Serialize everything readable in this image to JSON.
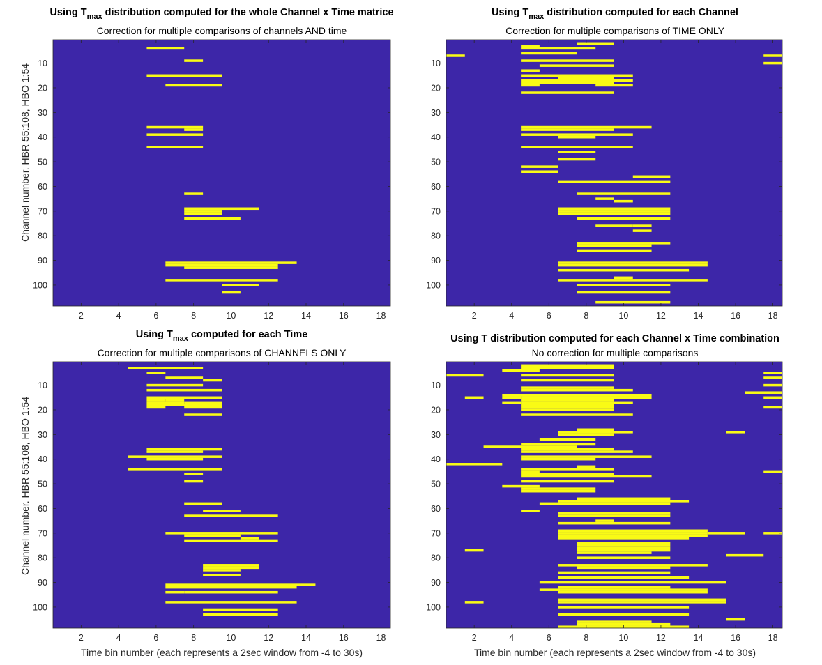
{
  "colors": {
    "background": "#3d26a8",
    "significant": "#f9fb15",
    "axis": "#262626"
  },
  "chart_data": [
    {
      "type": "heatmap",
      "title": {
        "prefix": "Using T",
        "subscript": "max",
        "suffix": " distribution computed for the whole Channel x Time matrice"
      },
      "subtitle": "Correction for multiple comparisons of channels AND time",
      "xlabel": "",
      "ylabel": "Channel number. HBR 55:108, HBO 1:54",
      "xlim": [
        0.5,
        18.5
      ],
      "ylim": [
        0.5,
        108.5
      ],
      "y_reversed": true,
      "xticks": [
        2,
        4,
        6,
        8,
        10,
        12,
        14,
        16,
        18
      ],
      "yticks": [
        10,
        20,
        30,
        40,
        50,
        60,
        70,
        80,
        90,
        100
      ],
      "segments": [
        [
          4,
          6,
          7
        ],
        [
          9,
          8,
          8
        ],
        [
          15,
          6,
          9
        ],
        [
          19,
          7,
          9
        ],
        [
          36,
          6,
          8
        ],
        [
          37,
          8,
          8
        ],
        [
          39,
          6,
          8
        ],
        [
          44,
          6,
          8
        ],
        [
          63,
          8,
          8
        ],
        [
          69,
          8,
          11
        ],
        [
          70,
          8,
          9
        ],
        [
          71,
          8,
          9
        ],
        [
          73,
          8,
          10
        ],
        [
          91,
          7,
          13
        ],
        [
          92,
          7,
          12
        ],
        [
          93,
          8,
          12
        ],
        [
          98,
          7,
          12
        ],
        [
          100,
          10,
          11
        ],
        [
          103,
          10,
          10
        ]
      ]
    },
    {
      "type": "heatmap",
      "title": {
        "prefix": "Using T",
        "subscript": "max",
        "suffix": " distribution computed for each Channel"
      },
      "subtitle": "Correction for multiple comparisons of TIME ONLY",
      "xlabel": "",
      "ylabel": "",
      "xlim": [
        0.5,
        18.5
      ],
      "ylim": [
        0.5,
        108.5
      ],
      "y_reversed": true,
      "xticks": [
        2,
        4,
        6,
        8,
        10,
        12,
        14,
        16,
        18
      ],
      "yticks": [
        10,
        20,
        30,
        40,
        50,
        60,
        70,
        80,
        90,
        100
      ],
      "segments": [
        [
          2,
          8,
          9
        ],
        [
          3,
          5,
          5
        ],
        [
          4,
          5,
          8
        ],
        [
          6,
          5,
          7
        ],
        [
          7,
          1,
          1
        ],
        [
          7,
          18,
          18
        ],
        [
          9,
          5,
          9
        ],
        [
          10,
          18,
          18
        ],
        [
          11,
          6,
          9
        ],
        [
          13,
          5,
          5
        ],
        [
          15,
          5,
          10
        ],
        [
          16,
          7,
          9
        ],
        [
          17,
          5,
          10
        ],
        [
          18,
          5,
          9
        ],
        [
          19,
          5,
          5
        ],
        [
          19,
          9,
          10
        ],
        [
          22,
          5,
          9
        ],
        [
          36,
          5,
          11
        ],
        [
          37,
          5,
          9
        ],
        [
          39,
          5,
          10
        ],
        [
          40,
          7,
          8
        ],
        [
          44,
          5,
          10
        ],
        [
          46,
          7,
          8
        ],
        [
          49,
          7,
          8
        ],
        [
          52,
          5,
          6
        ],
        [
          54,
          5,
          6
        ],
        [
          56,
          11,
          12
        ],
        [
          58,
          7,
          12
        ],
        [
          63,
          8,
          12
        ],
        [
          65,
          9,
          9
        ],
        [
          66,
          10,
          10
        ],
        [
          69,
          7,
          12
        ],
        [
          70,
          7,
          12
        ],
        [
          71,
          7,
          12
        ],
        [
          73,
          8,
          12
        ],
        [
          76,
          9,
          10
        ],
        [
          76,
          11,
          11
        ],
        [
          78,
          11,
          11
        ],
        [
          83,
          8,
          12
        ],
        [
          84,
          8,
          11
        ],
        [
          86,
          8,
          11
        ],
        [
          91,
          7,
          14
        ],
        [
          92,
          7,
          14
        ],
        [
          94,
          7,
          13
        ],
        [
          97,
          10,
          10
        ],
        [
          98,
          7,
          14
        ],
        [
          100,
          8,
          12
        ],
        [
          103,
          8,
          12
        ],
        [
          107,
          9,
          12
        ]
      ]
    },
    {
      "type": "heatmap",
      "title": {
        "prefix": "Using T",
        "subscript": "max",
        "suffix": " computed for each Time"
      },
      "subtitle": "Correction for multiple comparisons of CHANNELS ONLY",
      "xlabel": "Time bin number (each represents a 2sec window from -4 to 30s)",
      "ylabel": "Channel number. HBR 55:108, HBO 1:54",
      "xlim": [
        0.5,
        18.5
      ],
      "ylim": [
        0.5,
        108.5
      ],
      "y_reversed": true,
      "xticks": [
        2,
        4,
        6,
        8,
        10,
        12,
        14,
        16,
        18
      ],
      "yticks": [
        10,
        20,
        30,
        40,
        50,
        60,
        70,
        80,
        90,
        100
      ],
      "segments": [
        [
          3,
          5,
          8
        ],
        [
          5,
          6,
          6
        ],
        [
          7,
          7,
          8
        ],
        [
          8,
          9,
          9
        ],
        [
          10,
          6,
          8
        ],
        [
          12,
          6,
          9
        ],
        [
          15,
          6,
          9
        ],
        [
          16,
          6,
          6
        ],
        [
          16,
          7,
          7
        ],
        [
          17,
          6,
          7
        ],
        [
          17,
          8,
          9
        ],
        [
          18,
          6,
          9
        ],
        [
          19,
          6,
          6
        ],
        [
          19,
          8,
          9
        ],
        [
          22,
          8,
          9
        ],
        [
          36,
          6,
          9
        ],
        [
          37,
          6,
          8
        ],
        [
          39,
          5,
          9
        ],
        [
          40,
          6,
          8
        ],
        [
          44,
          5,
          9
        ],
        [
          46,
          8,
          8
        ],
        [
          49,
          8,
          8
        ],
        [
          58,
          8,
          9
        ],
        [
          61,
          9,
          10
        ],
        [
          63,
          8,
          12
        ],
        [
          70,
          7,
          12
        ],
        [
          71,
          8,
          10
        ],
        [
          72,
          11,
          11
        ],
        [
          73,
          8,
          12
        ],
        [
          83,
          9,
          11
        ],
        [
          84,
          9,
          11
        ],
        [
          85,
          9,
          10
        ],
        [
          87,
          9,
          10
        ],
        [
          91,
          7,
          14
        ],
        [
          92,
          7,
          13
        ],
        [
          94,
          7,
          7
        ],
        [
          94,
          8,
          12
        ],
        [
          98,
          7,
          13
        ],
        [
          101,
          9,
          12
        ],
        [
          103,
          9,
          12
        ]
      ]
    },
    {
      "type": "heatmap",
      "title": {
        "prefix": "Using T distribution computed for each Channel x Time combination",
        "subscript": "",
        "suffix": ""
      },
      "subtitle": "No correction for multiple comparisons",
      "xlabel": "Time bin number (each represents a 2sec window from -4 to 30s)",
      "ylabel": "",
      "xlim": [
        0.5,
        18.5
      ],
      "ylim": [
        0.5,
        108.5
      ],
      "y_reversed": true,
      "xticks": [
        2,
        4,
        6,
        8,
        10,
        12,
        14,
        16,
        18
      ],
      "yticks": [
        10,
        20,
        30,
        40,
        50,
        60,
        70,
        80,
        90,
        100
      ],
      "segments": [
        [
          2,
          5,
          9
        ],
        [
          3,
          5,
          9
        ],
        [
          4,
          4,
          5
        ],
        [
          5,
          18,
          18
        ],
        [
          6,
          1,
          2
        ],
        [
          6,
          5,
          9
        ],
        [
          7,
          18,
          18
        ],
        [
          8,
          5,
          9
        ],
        [
          10,
          18,
          18
        ],
        [
          11,
          5,
          9
        ],
        [
          12,
          5,
          10
        ],
        [
          13,
          17,
          18
        ],
        [
          14,
          4,
          11
        ],
        [
          15,
          2,
          2
        ],
        [
          15,
          4,
          4
        ],
        [
          15,
          5,
          11
        ],
        [
          15,
          18,
          18
        ],
        [
          16,
          5,
          9
        ],
        [
          17,
          4,
          4
        ],
        [
          17,
          5,
          10
        ],
        [
          18,
          5,
          9
        ],
        [
          19,
          5,
          9
        ],
        [
          19,
          18,
          18
        ],
        [
          20,
          5,
          9
        ],
        [
          22,
          5,
          10
        ],
        [
          28,
          8,
          9
        ],
        [
          29,
          7,
          10
        ],
        [
          29,
          16,
          16
        ],
        [
          30,
          7,
          9
        ],
        [
          32,
          6,
          8
        ],
        [
          34,
          5,
          8
        ],
        [
          35,
          3,
          7
        ],
        [
          36,
          5,
          9
        ],
        [
          37,
          5,
          10
        ],
        [
          39,
          5,
          11
        ],
        [
          40,
          5,
          8
        ],
        [
          42,
          1,
          3
        ],
        [
          43,
          8,
          8
        ],
        [
          44,
          5,
          9
        ],
        [
          45,
          5,
          5
        ],
        [
          45,
          18,
          18
        ],
        [
          46,
          5,
          9
        ],
        [
          47,
          5,
          11
        ],
        [
          49,
          5,
          9
        ],
        [
          51,
          4,
          5
        ],
        [
          52,
          5,
          8
        ],
        [
          53,
          5,
          8
        ],
        [
          56,
          8,
          12
        ],
        [
          57,
          7,
          13
        ],
        [
          58,
          6,
          9
        ],
        [
          58,
          10,
          12
        ],
        [
          61,
          5,
          5
        ],
        [
          62,
          7,
          12
        ],
        [
          63,
          7,
          12
        ],
        [
          65,
          9,
          9
        ],
        [
          66,
          7,
          12
        ],
        [
          69,
          7,
          14
        ],
        [
          70,
          7,
          14
        ],
        [
          70,
          15,
          16
        ],
        [
          70,
          18,
          18
        ],
        [
          71,
          7,
          14
        ],
        [
          72,
          7,
          13
        ],
        [
          74,
          8,
          12
        ],
        [
          75,
          8,
          12
        ],
        [
          76,
          8,
          12
        ],
        [
          77,
          2,
          2
        ],
        [
          77,
          8,
          12
        ],
        [
          78,
          8,
          11
        ],
        [
          79,
          16,
          17
        ],
        [
          80,
          8,
          12
        ],
        [
          83,
          7,
          14
        ],
        [
          84,
          8,
          12
        ],
        [
          86,
          7,
          12
        ],
        [
          88,
          7,
          13
        ],
        [
          90,
          6,
          15
        ],
        [
          92,
          7,
          12
        ],
        [
          93,
          6,
          14
        ],
        [
          94,
          7,
          14
        ],
        [
          97,
          7,
          15
        ],
        [
          98,
          2,
          2
        ],
        [
          98,
          7,
          15
        ],
        [
          100,
          7,
          13
        ],
        [
          103,
          7,
          13
        ],
        [
          105,
          16,
          16
        ],
        [
          106,
          8,
          11
        ],
        [
          107,
          8,
          12
        ],
        [
          108,
          7,
          13
        ]
      ]
    }
  ]
}
